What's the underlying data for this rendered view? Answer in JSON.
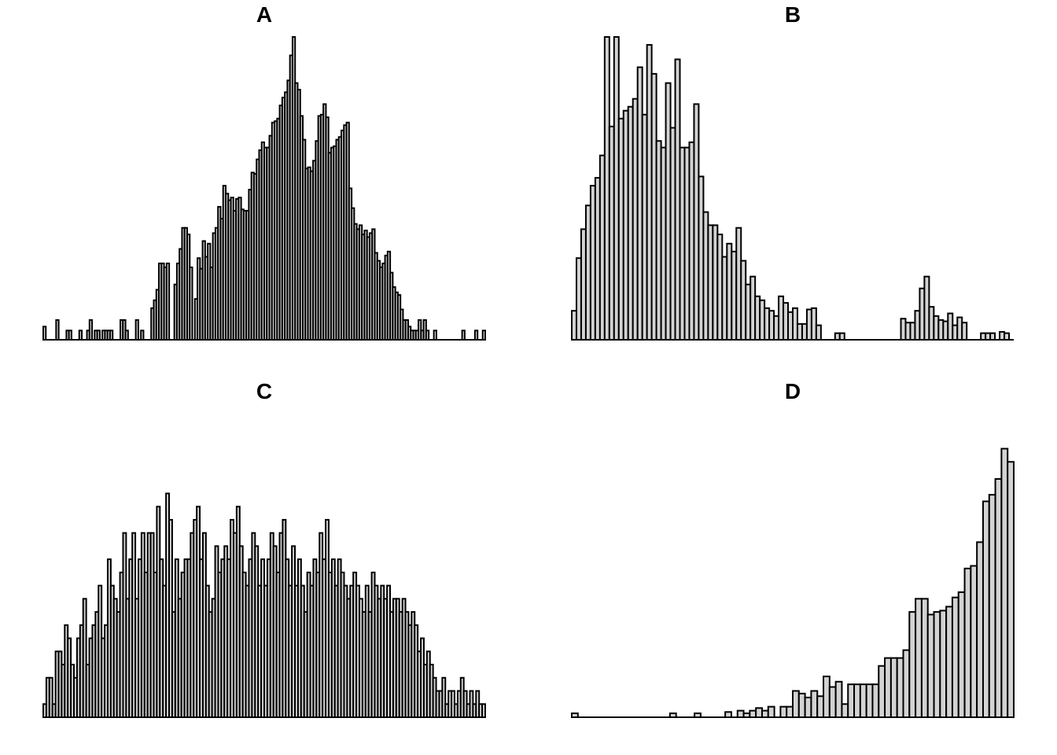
{
  "chart_data": [
    {
      "type": "bar",
      "title": "A",
      "xlabel": "",
      "ylabel": "",
      "ylim": [
        0,
        23
      ],
      "values": [
        1,
        0,
        0,
        0,
        0,
        1.5,
        0,
        0,
        0,
        0.7,
        0.7,
        0,
        0,
        0,
        0.7,
        0,
        0,
        0.7,
        1.5,
        0,
        0.7,
        0.7,
        0,
        0.7,
        0.7,
        0.7,
        0.7,
        0,
        0,
        0,
        1.5,
        1.5,
        0.7,
        0,
        0,
        0,
        1.5,
        0,
        0.7,
        0,
        0,
        0,
        2.4,
        3,
        3.8,
        5.8,
        5.8,
        5.5,
        5.8,
        0,
        0,
        4.2,
        5.8,
        6.9,
        8.5,
        8.5,
        8,
        5.5,
        0,
        3.1,
        6.2,
        5.4,
        7.5,
        6.3,
        7.3,
        5.5,
        8.1,
        8.5,
        10.1,
        9.2,
        11.7,
        11.1,
        10.6,
        10.8,
        9.8,
        10.7,
        10.8,
        9.9,
        9.8,
        9.8,
        11.4,
        12.7,
        12.6,
        13.7,
        14.4,
        15,
        14.6,
        14.6,
        15.5,
        16.5,
        16.6,
        16.8,
        17.8,
        18.4,
        18.8,
        19.7,
        21.6,
        23,
        19.5,
        19,
        17,
        15.2,
        13,
        13.1,
        12.8,
        13.6,
        15.1,
        17,
        17.1,
        17.9,
        16.9,
        14.2,
        14.6,
        14.7,
        15.2,
        15.4,
        15.9,
        16.3,
        16.5,
        11.5,
        10,
        8.8,
        8.4,
        8.7,
        8,
        8.3,
        7.8,
        8.1,
        8.4,
        6.6,
        6,
        5.5,
        5.8,
        6.4,
        6.7,
        5.1,
        4,
        3.6,
        3.4,
        2.3,
        1.5,
        1.5,
        1,
        0.7,
        0.7,
        0.7,
        1.5,
        0.7,
        1.5,
        0.7,
        0,
        0,
        0.7,
        0,
        0,
        0,
        0,
        0,
        0,
        0,
        0,
        0,
        0,
        0.7,
        0,
        0,
        0,
        0,
        0.7,
        0,
        0,
        0.7
      ]
    },
    {
      "type": "bar",
      "title": "B",
      "xlabel": "",
      "ylabel": "",
      "ylim": [
        0,
        23
      ],
      "values": [
        2.2,
        6.2,
        8.4,
        10.2,
        11.7,
        12.3,
        14,
        23,
        16.2,
        23,
        16.8,
        17.4,
        17.7,
        18.3,
        20.7,
        17.1,
        22.4,
        20.2,
        15.1,
        14.6,
        19.5,
        16.1,
        21.3,
        14.6,
        14.6,
        15,
        17.9,
        12.4,
        9.7,
        8.7,
        8.7,
        8,
        6.3,
        7.3,
        6.7,
        8.5,
        6,
        4.2,
        4.8,
        3.3,
        3,
        2.4,
        2.2,
        1.8,
        3.3,
        2.8,
        2.1,
        2.4,
        1.2,
        1.2,
        2.3,
        2.4,
        1.1,
        0,
        0,
        0,
        0.5,
        0.5,
        0,
        0,
        0,
        0,
        0,
        0,
        0,
        0,
        0,
        0,
        0,
        0,
        1.6,
        1.3,
        1.3,
        2.2,
        3.9,
        4.8,
        2.5,
        1.8,
        1.5,
        1.4,
        2,
        1.1,
        1.7,
        1.3,
        0,
        0,
        0,
        0.5,
        0.5,
        0.5,
        0,
        0.6,
        0.5,
        0
      ]
    },
    {
      "type": "bar",
      "title": "C",
      "xlabel": "",
      "ylabel": "",
      "ylim": [
        0,
        23
      ],
      "values": [
        1,
        3,
        3,
        1,
        5,
        5,
        4,
        7,
        6,
        4,
        3,
        6,
        7,
        9,
        4,
        6,
        7,
        8,
        10,
        6,
        7,
        12,
        10,
        9,
        8,
        11,
        14,
        9,
        12,
        14,
        9,
        12,
        14,
        11,
        14,
        14,
        11,
        16,
        12,
        10,
        17,
        15,
        8,
        12,
        9,
        11,
        12,
        12,
        14,
        15,
        16,
        12,
        14,
        10,
        8,
        9,
        13,
        11,
        12,
        13,
        12,
        15,
        14,
        16,
        13,
        11,
        10,
        12,
        14,
        13,
        10,
        12,
        10,
        12,
        14,
        13,
        11,
        14,
        15,
        12,
        10,
        13,
        10,
        12,
        10,
        8,
        11,
        10,
        12,
        11,
        14,
        12,
        15,
        11,
        12,
        10,
        12,
        11,
        10,
        9,
        10,
        11,
        10,
        9,
        8,
        10,
        8,
        11,
        10,
        9,
        10,
        9,
        10,
        8,
        9,
        9,
        8,
        9,
        8,
        7,
        8,
        7,
        5,
        6,
        4,
        5,
        4,
        3,
        2,
        2,
        3,
        1,
        2,
        2,
        1,
        2,
        3,
        2,
        1,
        2,
        1,
        2,
        1,
        1
      ]
    },
    {
      "type": "bar",
      "title": "D",
      "xlabel": "",
      "ylabel": "",
      "ylim": [
        0,
        23
      ],
      "values": [
        0.3,
        0,
        0,
        0,
        0,
        0,
        0,
        0,
        0,
        0,
        0,
        0,
        0,
        0,
        0,
        0,
        0.3,
        0,
        0,
        0,
        0.3,
        0,
        0,
        0,
        0,
        0.4,
        0,
        0.5,
        0.3,
        0.5,
        0.7,
        0.5,
        0.8,
        0,
        0.8,
        0.8,
        2,
        1.8,
        1.5,
        2,
        1.6,
        3.1,
        2.3,
        2.7,
        1,
        2.5,
        2.5,
        2.5,
        2.5,
        2.5,
        3.9,
        4.5,
        4.5,
        4.5,
        5.1,
        8,
        9,
        9,
        7.8,
        8,
        8.1,
        8.4,
        9.1,
        9.5,
        11.3,
        11.5,
        13.3,
        16.4,
        16.9,
        18.1,
        20.4,
        19.4
      ]
    }
  ]
}
